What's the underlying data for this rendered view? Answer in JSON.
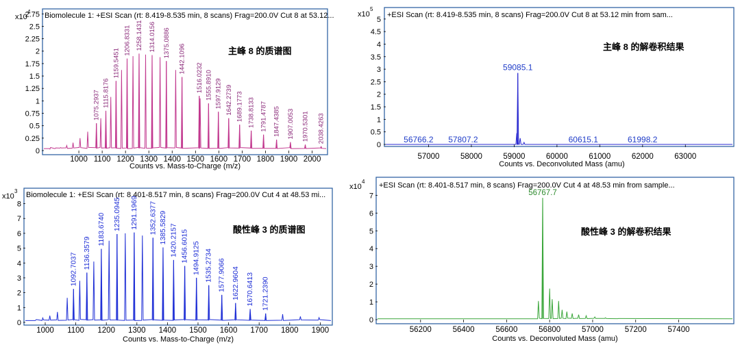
{
  "chart_data": [
    {
      "id": "p1",
      "type": "line",
      "title": "Biomolecule 1: +ESI Scan (rt: 8.419-8.535 min, 8 scans) Frag=200.0V Cut 8 at 53.12...",
      "annotation": "主峰 8 的质谱图",
      "xlabel": "Counts vs. Mass-to-Charge (m/z)",
      "ylabel": "",
      "y_scale_label": "x10",
      "y_scale_exp": "4",
      "xlim": [
        850,
        2060
      ],
      "ylim": [
        0,
        2.85
      ],
      "x_ticks": [
        1000,
        1100,
        1200,
        1300,
        1400,
        1500,
        1600,
        1700,
        1800,
        1900,
        2000
      ],
      "y_ticks": [
        "0",
        "0.25",
        "0.5",
        "0.75",
        "1",
        "1.25",
        "1.5",
        "1.75",
        "2",
        "2.25",
        "2.5",
        "2.75"
      ],
      "line_color": "#c2398f",
      "label_color": "#8b2a7a",
      "peaks": [
        {
          "x": 1075.2937,
          "y": 0.55,
          "label": "1075.2937"
        },
        {
          "x": 1115.8176,
          "y": 0.8,
          "label": "1115.8176"
        },
        {
          "x": 1159.5451,
          "y": 1.4,
          "label": "1159.5451"
        },
        {
          "x": 1206.8331,
          "y": 1.85,
          "label": "1206.8331"
        },
        {
          "x": 1258.1431,
          "y": 1.95,
          "label": "1258.1431"
        },
        {
          "x": 1314.0156,
          "y": 1.92,
          "label": "1314.0156"
        },
        {
          "x": 1375.0886,
          "y": 1.8,
          "label": "1375.0886"
        },
        {
          "x": 1442.1096,
          "y": 1.48,
          "label": "1442.1096"
        },
        {
          "x": 1516.0232,
          "y": 1.1,
          "label": "1516.0232"
        },
        {
          "x": 1555.891,
          "y": 0.95,
          "label": "1555.8910"
        },
        {
          "x": 1597.9129,
          "y": 0.78,
          "label": "1597.9129"
        },
        {
          "x": 1642.2739,
          "y": 0.65,
          "label": "1642.2739"
        },
        {
          "x": 1689.1773,
          "y": 0.52,
          "label": "1689.1773"
        },
        {
          "x": 1738.8133,
          "y": 0.4,
          "label": "1738.8133"
        },
        {
          "x": 1791.4787,
          "y": 0.32,
          "label": "1791.4787"
        },
        {
          "x": 1847.4385,
          "y": 0.22,
          "label": "1847.4385"
        },
        {
          "x": 1907.0053,
          "y": 0.17,
          "label": "1907.0053"
        },
        {
          "x": 1970.5301,
          "y": 0.12,
          "label": "1970.5301"
        },
        {
          "x": 2038.4263,
          "y": 0.08,
          "label": "2038.4263"
        }
      ],
      "minor_peaks": [
        {
          "x": 1520.0,
          "y": 1.05
        },
        {
          "x": 1415.0,
          "y": 1.62
        },
        {
          "x": 1348.0,
          "y": 1.88
        },
        {
          "x": 1286.0,
          "y": 1.93
        },
        {
          "x": 1232.0,
          "y": 1.9
        },
        {
          "x": 1183.0,
          "y": 1.62
        },
        {
          "x": 1137.0,
          "y": 1.08
        },
        {
          "x": 1094.0,
          "y": 0.65
        },
        {
          "x": 1038.0,
          "y": 0.38
        },
        {
          "x": 1005.0,
          "y": 0.25
        },
        {
          "x": 975.0,
          "y": 0.16
        },
        {
          "x": 948.0,
          "y": 0.1
        },
        {
          "x": 922.0,
          "y": 0.06
        },
        {
          "x": 898.0,
          "y": 0.04
        },
        {
          "x": 876.0,
          "y": 0.03
        }
      ],
      "baseline": 0.04
    },
    {
      "id": "p2",
      "type": "line",
      "title": "+ESI Scan (rt: 8.419-8.535 min, 8 scans) Frag=200.0V Cut 8 at 53.12 min from sam...",
      "annotation": "主峰 8 的解卷积结果",
      "xlabel": "Counts vs. Deconvoluted Mass (amu)",
      "ylabel": "",
      "y_scale_label": "x10",
      "y_scale_exp": "5",
      "xlim": [
        56000,
        64100
      ],
      "ylim": [
        0,
        5.35
      ],
      "x_ticks": [
        57000,
        58000,
        59000,
        60000,
        61000,
        62000,
        63000
      ],
      "y_ticks": [
        "0",
        "0.5",
        "1",
        "1.5",
        "2",
        "2.5",
        "3",
        "3.5",
        "4",
        "4.5",
        "5"
      ],
      "line_color": "#2a2ad0",
      "label_color": "#1f3cc8",
      "peaks": [
        {
          "x": 59085.1,
          "y": 2.85,
          "label": "59085.1"
        }
      ],
      "minor_peaks": [
        {
          "x": 59060.0,
          "y": 0.45
        },
        {
          "x": 59140.0,
          "y": 0.25
        },
        {
          "x": 59230.0,
          "y": 0.08
        }
      ],
      "baseline_labels": [
        {
          "x": 56766.2,
          "label": "56766.2"
        },
        {
          "x": 57807.2,
          "label": "57807.2"
        },
        {
          "x": 60615.1,
          "label": "60615.1"
        },
        {
          "x": 61998.2,
          "label": "61998.2"
        }
      ],
      "baseline": 0.0
    },
    {
      "id": "p3",
      "type": "line",
      "title": "Biomolecule 1: +ESI Scan (rt: 8.401-8.517 min, 8 scans) Frag=200.0V Cut 4 at 48.53 mi...",
      "annotation": "酸性峰 3 的质谱图",
      "xlabel": "Counts vs. Mass-to-Charge (m/z)",
      "ylabel": "",
      "y_scale_label": "x10",
      "y_scale_exp": "3",
      "xlim": [
        935,
        1935
      ],
      "ylim": [
        0,
        8.9
      ],
      "x_ticks": [
        1000,
        1100,
        1200,
        1300,
        1400,
        1500,
        1600,
        1700,
        1800,
        1900
      ],
      "y_ticks": [
        "0",
        "1",
        "2",
        "3",
        "4",
        "5",
        "6",
        "7",
        "8"
      ],
      "line_color": "#1f2fd6",
      "label_color": "#1f2fd6",
      "peaks": [
        {
          "x": 1092.7037,
          "y": 2.25,
          "label": "1092.7037"
        },
        {
          "x": 1136.3579,
          "y": 3.35,
          "label": "1136.3579"
        },
        {
          "x": 1183.674,
          "y": 4.95,
          "label": "1183.6740"
        },
        {
          "x": 1235.0945,
          "y": 5.95,
          "label": "1235.0945"
        },
        {
          "x": 1291.1969,
          "y": 6.05,
          "label": "1291.1969"
        },
        {
          "x": 1352.6377,
          "y": 5.7,
          "label": "1352.6377"
        },
        {
          "x": 1385.5829,
          "y": 5.05,
          "label": "1385.5829"
        },
        {
          "x": 1420.2157,
          "y": 4.2,
          "label": "1420.2157"
        },
        {
          "x": 1456.6015,
          "y": 3.8,
          "label": "1456.6015"
        },
        {
          "x": 1494.9125,
          "y": 3.0,
          "label": "1494.9125"
        },
        {
          "x": 1535.2734,
          "y": 2.5,
          "label": "1535.2734"
        },
        {
          "x": 1577.9066,
          "y": 1.85,
          "label": "1577.9066"
        },
        {
          "x": 1622.9604,
          "y": 1.3,
          "label": "1622.9604"
        },
        {
          "x": 1670.6413,
          "y": 0.9,
          "label": "1670.6413"
        },
        {
          "x": 1721.239,
          "y": 0.6,
          "label": "1721.2390"
        }
      ],
      "minor_peaks": [
        {
          "x": 1318.0,
          "y": 5.85
        },
        {
          "x": 1262.0,
          "y": 6.0
        },
        {
          "x": 1209.0,
          "y": 5.5
        },
        {
          "x": 1159.0,
          "y": 4.1
        },
        {
          "x": 1113.0,
          "y": 2.8
        },
        {
          "x": 1072.0,
          "y": 1.65
        },
        {
          "x": 1040.0,
          "y": 0.7
        },
        {
          "x": 1015.0,
          "y": 0.45
        },
        {
          "x": 992.0,
          "y": 0.3
        },
        {
          "x": 970.0,
          "y": 0.18
        },
        {
          "x": 1777.0,
          "y": 0.55
        },
        {
          "x": 1835.0,
          "y": 0.4
        },
        {
          "x": 1896.0,
          "y": 0.32
        }
      ],
      "baseline": 0.12
    },
    {
      "id": "p4",
      "type": "line",
      "title": "+ESI Scan (rt: 8.401-8.517 min, 8 scans) Frag=200.0V Cut 4 at 48.53 min from sample...",
      "annotation": "酸性峰 3 的解卷积结果",
      "xlabel": "Counts vs. Deconvoluted Mass (amu)",
      "ylabel": "",
      "y_scale_label": "x10",
      "y_scale_exp": "4",
      "xlim": [
        56000,
        57650
      ],
      "ylim": [
        0,
        7.9
      ],
      "x_ticks": [
        56200,
        56400,
        56600,
        56800,
        57000,
        57200,
        57400
      ],
      "y_ticks": [
        "0",
        "1",
        "2",
        "3",
        "4",
        "5",
        "6",
        "7"
      ],
      "line_color": "#3aa63a",
      "label_color": "#2e8b2e",
      "peaks": [
        {
          "x": 56767.7,
          "y": 6.85,
          "label": "56767.7"
        }
      ],
      "minor_peaks": [
        {
          "x": 56748.0,
          "y": 1.05
        },
        {
          "x": 56800.0,
          "y": 1.75
        },
        {
          "x": 56812.0,
          "y": 1.15
        },
        {
          "x": 56842.0,
          "y": 1.05
        },
        {
          "x": 56858.0,
          "y": 0.55
        },
        {
          "x": 56880.0,
          "y": 0.45
        },
        {
          "x": 56905.0,
          "y": 0.35
        },
        {
          "x": 56935.0,
          "y": 0.28
        },
        {
          "x": 56970.0,
          "y": 0.22
        },
        {
          "x": 57010.0,
          "y": 0.15
        },
        {
          "x": 57060.0,
          "y": 0.1
        },
        {
          "x": 57120.0,
          "y": 0.06
        }
      ],
      "baseline": 0.05,
      "envelope_range": [
        56700,
        57150
      ]
    }
  ]
}
